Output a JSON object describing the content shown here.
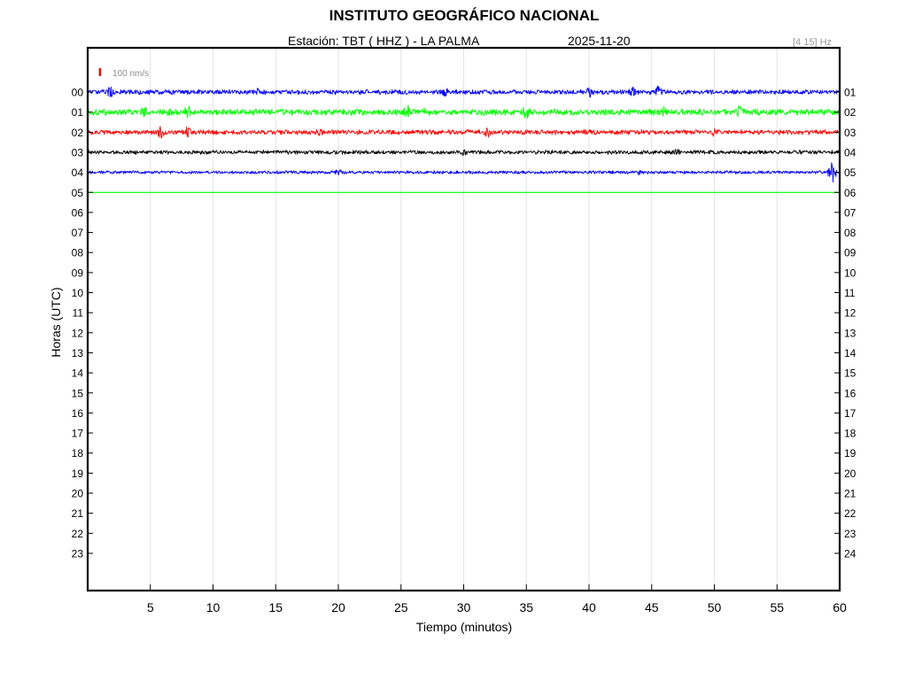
{
  "header": {
    "title": "INSTITUTO GEOGRÁFICO NACIONAL",
    "station": "Estación:  TBT ( HHZ ) - LA PALMA",
    "date": "2025-11-20",
    "frequency": "[4 15] Hz"
  },
  "chart_data": {
    "type": "line",
    "title": "INSTITUTO GEOGRÁFICO NACIONAL",
    "subtitle": "Estación:  TBT ( HHZ ) - LA PALMA   2025-11-20",
    "xlabel": "Tiempo (minutos)",
    "ylabel": "Horas (UTC)",
    "xlim": [
      0,
      60
    ],
    "x_ticks": [
      "5",
      "10",
      "15",
      "20",
      "25",
      "30",
      "35",
      "40",
      "45",
      "50",
      "55",
      "60"
    ],
    "y_ticks_left": [
      "00",
      "01",
      "02",
      "03",
      "04",
      "05",
      "06",
      "07",
      "08",
      "09",
      "10",
      "11",
      "12",
      "13",
      "14",
      "15",
      "16",
      "17",
      "18",
      "19",
      "20",
      "21",
      "22",
      "23"
    ],
    "y_ticks_right": [
      "01",
      "02",
      "03",
      "04",
      "05",
      "06",
      "07",
      "08",
      "09",
      "10",
      "11",
      "12",
      "13",
      "14",
      "15",
      "16",
      "17",
      "18",
      "19",
      "20",
      "21",
      "22",
      "23",
      "24"
    ],
    "scale_label": "100 nm/s",
    "scale_color": "#ff0000",
    "grid": "vertical",
    "series": [
      {
        "hour": "00",
        "color": "#0000ff",
        "amplitude": 3,
        "end_minute": 60,
        "events": [
          [
            1.8,
            6
          ],
          [
            13.5,
            4
          ],
          [
            40,
            6
          ],
          [
            43.5,
            5
          ],
          [
            45.5,
            6
          ],
          [
            28.5,
            4
          ]
        ]
      },
      {
        "hour": "01",
        "color": "#00ff00",
        "amplitude": 4,
        "end_minute": 60,
        "events": [
          [
            4.5,
            5
          ],
          [
            8,
            6
          ],
          [
            25.5,
            8
          ],
          [
            27,
            5
          ],
          [
            35,
            7
          ],
          [
            46,
            5
          ],
          [
            52,
            6
          ]
        ]
      },
      {
        "hour": "02",
        "color": "#ff0000",
        "amplitude": 3,
        "end_minute": 60,
        "events": [
          [
            5.8,
            7
          ],
          [
            8,
            6
          ],
          [
            18.5,
            4
          ],
          [
            32,
            6
          ],
          [
            50,
            4
          ]
        ]
      },
      {
        "hour": "03",
        "color": "#000000",
        "amplitude": 2.5,
        "end_minute": 60,
        "events": [
          [
            30,
            3
          ],
          [
            47,
            3
          ]
        ]
      },
      {
        "hour": "04",
        "color": "#0000ff",
        "amplitude": 2,
        "end_minute": 60,
        "events": [
          [
            59.4,
            12
          ],
          [
            20,
            3
          ],
          [
            44,
            3
          ]
        ]
      },
      {
        "hour": "05",
        "color": "#00ff00",
        "amplitude": 0,
        "end_minute": 60,
        "events": []
      }
    ]
  }
}
